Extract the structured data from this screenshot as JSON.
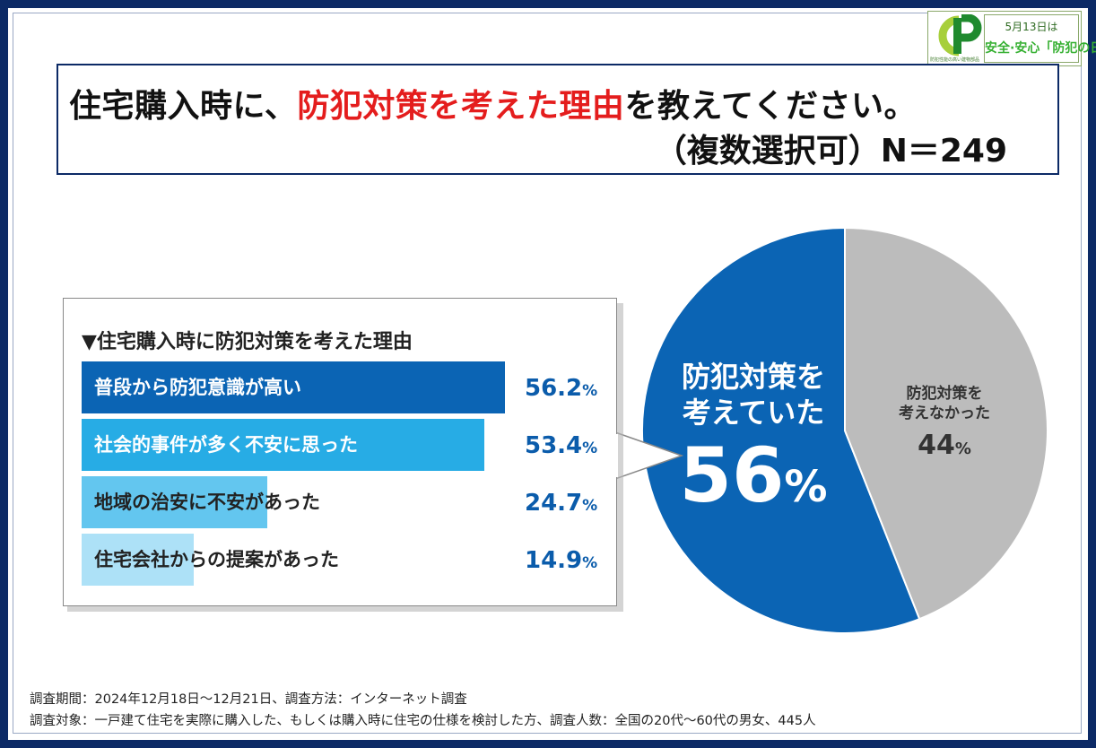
{
  "title": {
    "part1": "住宅購入時に、",
    "highlight": "防犯対策を考えた理由",
    "part2": "を教えてください。",
    "line2": "（複数選択可）N＝249"
  },
  "logo": {
    "letter": "P",
    "tagline": "防犯性能の高い建物部品",
    "date": "5月13日は",
    "slogan": "安全·安心「防犯の日」"
  },
  "list_card": {
    "title": "▼住宅購入時に防犯対策を考えた理由"
  },
  "chart_data": [
    {
      "type": "bar",
      "orientation": "horizontal",
      "title": "▼住宅購入時に防犯対策を考えた理由",
      "categories": [
        "普段から防犯意識が高い",
        "社会的事件が多く不安に思った",
        "地域の治安に不安があった",
        "住宅会社からの提案があった"
      ],
      "values": [
        56.2,
        53.4,
        24.7,
        14.9
      ],
      "value_labels": [
        "56.2",
        "53.4",
        "24.7",
        "14.9"
      ],
      "unit": "%",
      "bar_colors": [
        "#0b64b4",
        "#27ace5",
        "#63c6ef",
        "#ade1f7"
      ],
      "label_colors": [
        "#ffffff",
        "#ffffff",
        "#222222",
        "#222222"
      ],
      "xlim": [
        0,
        100
      ]
    },
    {
      "type": "pie",
      "slices": [
        {
          "label_line1": "防犯対策を",
          "label_line2": "考えていた",
          "value": 56,
          "value_label": "56",
          "color": "#0b64b4"
        },
        {
          "label_line1": "防犯対策を",
          "label_line2": "考えなかった",
          "value": 44,
          "value_label": "44",
          "color": "#bcbcbc"
        }
      ],
      "unit": "%"
    }
  ],
  "footer": {
    "line1": "調査期間：2024年12月18日～12月21日、調査方法：インターネット調査",
    "line2": "調査対象：一戸建て住宅を実際に購入した、もしくは購入時に住宅の仕様を検討した方、調査人数：全国の20代～60代の男女、445人"
  }
}
